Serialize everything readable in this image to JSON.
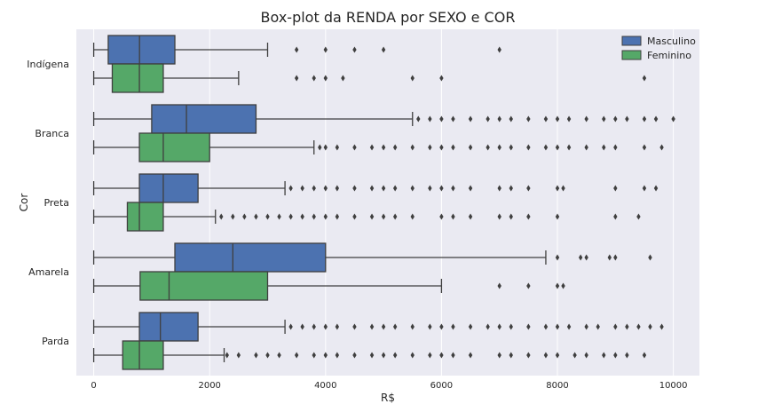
{
  "chart_data": {
    "type": "boxplot",
    "orientation": "horizontal",
    "title": "Box-plot da RENDA por SEXO e COR",
    "xlabel": "R$",
    "ylabel": "Cor",
    "xlim": [
      -300,
      10450
    ],
    "xticks": [
      0,
      2000,
      4000,
      6000,
      8000,
      10000
    ],
    "grid": true,
    "legend_position": "top-right",
    "categories": [
      "Indígena",
      "Branca",
      "Preta",
      "Amarela",
      "Parda"
    ],
    "series": [
      {
        "name": "Masculino",
        "color": "#4c72b0",
        "boxes": [
          {
            "whisker_low": 0,
            "q1": 250,
            "median": 790,
            "q3": 1400,
            "whisker_high": 3000,
            "outliers": [
              3500,
              4000,
              4500,
              5000,
              7000
            ]
          },
          {
            "whisker_low": 0,
            "q1": 1000,
            "median": 1600,
            "q3": 2800,
            "whisker_high": 5500,
            "outliers": [
              5600,
              5800,
              6000,
              6200,
              6500,
              6800,
              7000,
              7200,
              7500,
              7800,
              8000,
              8200,
              8500,
              8800,
              9000,
              9200,
              9500,
              9700,
              10000
            ]
          },
          {
            "whisker_low": 0,
            "q1": 788,
            "median": 1200,
            "q3": 1800,
            "whisker_high": 3300,
            "outliers": [
              3400,
              3600,
              3800,
              4000,
              4200,
              4500,
              4800,
              5000,
              5200,
              5500,
              5800,
              6000,
              6200,
              6500,
              7000,
              7200,
              7500,
              8000,
              8100,
              9000,
              9500,
              9700
            ]
          },
          {
            "whisker_low": 0,
            "q1": 1400,
            "median": 2400,
            "q3": 4000,
            "whisker_high": 7800,
            "outliers": [
              8000,
              8400,
              8500,
              8900,
              9000,
              9600
            ]
          },
          {
            "whisker_low": 0,
            "q1": 788,
            "median": 1150,
            "q3": 1800,
            "whisker_high": 3300,
            "outliers": [
              3400,
              3600,
              3800,
              4000,
              4200,
              4500,
              4800,
              5000,
              5200,
              5500,
              5800,
              6000,
              6200,
              6500,
              6800,
              7000,
              7200,
              7500,
              7800,
              8000,
              8200,
              8500,
              8700,
              9000,
              9200,
              9400,
              9600,
              9800
            ]
          }
        ]
      },
      {
        "name": "Feminino",
        "color": "#55a868",
        "boxes": [
          {
            "whisker_low": 0,
            "q1": 320,
            "median": 788,
            "q3": 1200,
            "whisker_high": 2500,
            "outliers": [
              3500,
              3800,
              4000,
              4300,
              5500,
              6000,
              9500
            ]
          },
          {
            "whisker_low": 0,
            "q1": 788,
            "median": 1200,
            "q3": 2000,
            "whisker_high": 3800,
            "outliers": [
              3900,
              4000,
              4200,
              4500,
              4800,
              5000,
              5200,
              5500,
              5800,
              6000,
              6200,
              6500,
              6800,
              7000,
              7200,
              7500,
              7800,
              8000,
              8200,
              8500,
              8800,
              9000,
              9500,
              9800
            ]
          },
          {
            "whisker_low": 0,
            "q1": 580,
            "median": 788,
            "q3": 1200,
            "whisker_high": 2100,
            "outliers": [
              2200,
              2400,
              2600,
              2800,
              3000,
              3200,
              3400,
              3600,
              3800,
              4000,
              4200,
              4500,
              4800,
              5000,
              5200,
              5500,
              6000,
              6200,
              6500,
              7000,
              7200,
              7500,
              8000,
              9000,
              9400
            ]
          },
          {
            "whisker_low": 0,
            "q1": 800,
            "median": 1300,
            "q3": 3000,
            "whisker_high": 6000,
            "outliers": [
              7000,
              7500,
              8000,
              8100
            ]
          },
          {
            "whisker_low": 0,
            "q1": 500,
            "median": 788,
            "q3": 1200,
            "whisker_high": 2250,
            "outliers": [
              2300,
              2500,
              2800,
              3000,
              3200,
              3500,
              3800,
              4000,
              4200,
              4500,
              4800,
              5000,
              5200,
              5500,
              5800,
              6000,
              6200,
              6500,
              7000,
              7200,
              7500,
              7800,
              8000,
              8300,
              8500,
              8800,
              9000,
              9200,
              9500
            ]
          }
        ]
      }
    ]
  }
}
